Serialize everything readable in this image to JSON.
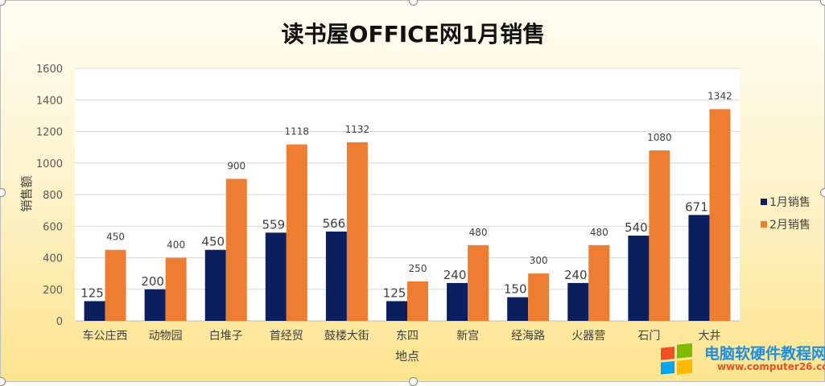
{
  "chart_data": {
    "type": "bar",
    "title": "读书屋OFFICE网1月销售",
    "xlabel": "地点",
    "ylabel": "销售额",
    "ylim": [
      0,
      1600
    ],
    "yticks": [
      "0",
      "200",
      "400",
      "600",
      "800",
      "1000",
      "1200",
      "1400",
      "1600"
    ],
    "grid": true,
    "legend_position": "right",
    "categories": [
      "车公庄西",
      "动物园",
      "白堆子",
      "首经贸",
      "鼓楼大街",
      "东四",
      "新宫",
      "经海路",
      "火器营",
      "石门",
      "大井"
    ],
    "series": [
      {
        "name": "1月销售",
        "color": "#0b1f5e",
        "values": [
          125,
          200,
          450,
          559,
          566,
          125,
          240,
          150,
          240,
          540,
          671
        ]
      },
      {
        "name": "2月销售",
        "color": "#ed7d31",
        "values": [
          450,
          400,
          900,
          1118,
          1132,
          250,
          480,
          300,
          480,
          1080,
          1342
        ]
      }
    ]
  },
  "watermark": {
    "name": "电脑软硬件教程网",
    "url": "www.computer26.com"
  }
}
